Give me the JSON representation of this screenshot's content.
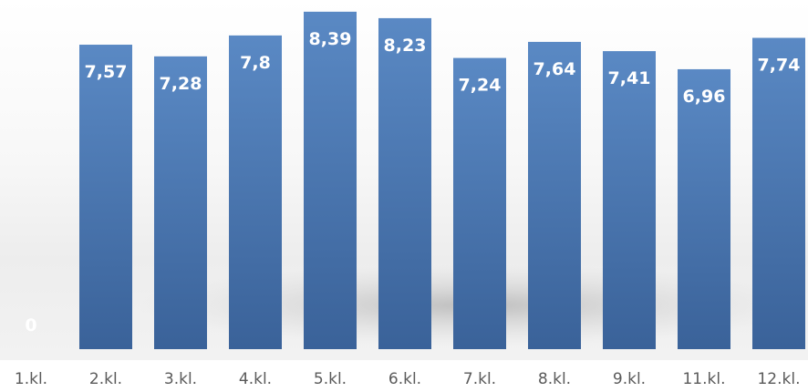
{
  "chart_data": {
    "type": "bar",
    "categories": [
      "1.kl.",
      "2.kl.",
      "3.kl.",
      "4.kl.",
      "5.kl.",
      "6.kl.",
      "7.kl.",
      "8.kl.",
      "9.kl.",
      "11.kl.",
      "12.kl."
    ],
    "values": [
      0,
      7.57,
      7.28,
      7.8,
      8.39,
      8.23,
      7.24,
      7.64,
      7.41,
      6.96,
      7.74
    ],
    "value_labels": [
      "0",
      "7,57",
      "7,28",
      "7,8",
      "8,39",
      "8,23",
      "7,24",
      "7,64",
      "7,41",
      "6,96",
      "7,74"
    ],
    "title": "",
    "xlabel": "",
    "ylabel": "",
    "ylim": [
      0,
      8.5
    ],
    "grid": false,
    "legend": "none",
    "colors": {
      "bar": "#4a7ab6",
      "bar_light": "#5a89c4",
      "bar_dark": "#3a6299",
      "value_text": "#ffffff",
      "category_text": "#5a5a5a"
    }
  }
}
